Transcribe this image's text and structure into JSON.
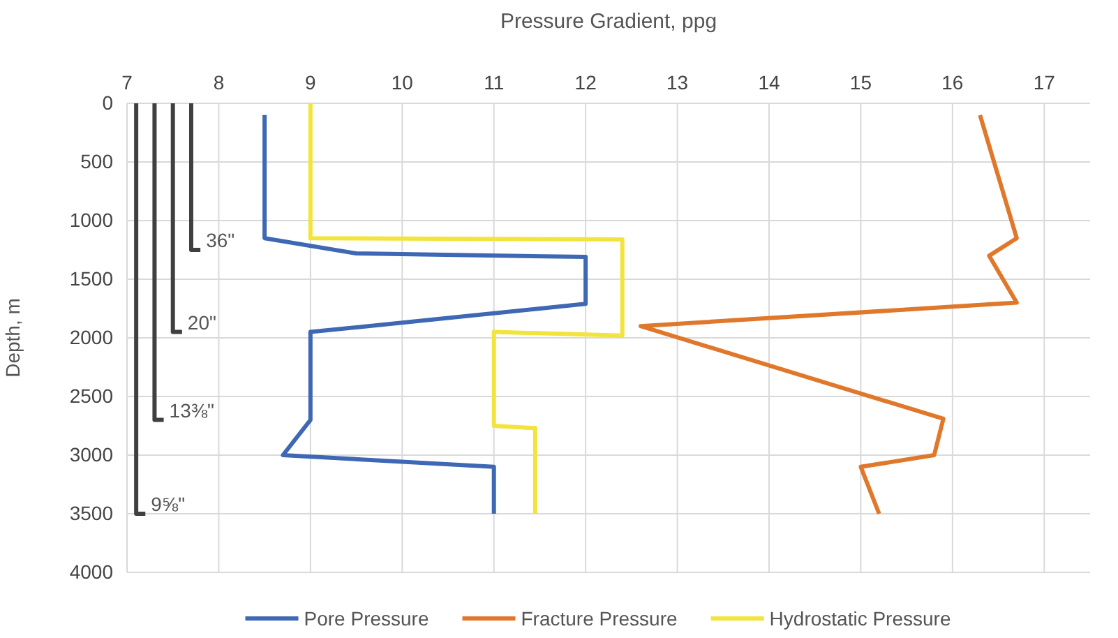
{
  "chart_data": {
    "type": "line",
    "xlabel": "Pressure Gradient, ppg",
    "ylabel": "Depth, m",
    "xlim": [
      7,
      17.5
    ],
    "xticks": [
      7,
      8,
      9,
      10,
      11,
      12,
      13,
      14,
      15,
      16,
      17
    ],
    "ylim": [
      4000,
      0
    ],
    "yticks": [
      0,
      500,
      1000,
      1500,
      2000,
      2500,
      3000,
      3500,
      4000
    ],
    "grid": true,
    "legend": "bottom",
    "line_style": "solid",
    "marker": "none",
    "series": [
      {
        "name": "Pore Pressure",
        "color": "#3e68b4",
        "x": [
          8.5,
          8.5,
          9.5,
          12,
          12,
          9,
          9,
          8.7,
          11,
          11
        ],
        "values": [
          100,
          1150,
          1280,
          1310,
          1710,
          1950,
          2700,
          3000,
          3100,
          3500
        ]
      },
      {
        "name": "Fracture Pressure",
        "color": "#e0782c",
        "x": [
          16.3,
          16.7,
          16.4,
          16.7,
          12.6,
          15.9,
          15.8,
          15,
          15.2
        ],
        "values": [
          100,
          1150,
          1300,
          1700,
          1900,
          2690,
          3000,
          3100,
          3500
        ]
      },
      {
        "name": "Hydrostatic Pressure",
        "color": "#f2e43c",
        "x": [
          9,
          9,
          12.4,
          12.4,
          11,
          11,
          11.45,
          11.45
        ],
        "values": [
          0,
          1150,
          1160,
          1980,
          1950,
          2750,
          2770,
          3500
        ]
      },
      {
        "color": "#404040",
        "x": [
          7.7,
          7.7,
          7.8
        ],
        "values": [
          0,
          1250,
          1250
        ]
      },
      {
        "color": "#404040",
        "x": [
          7.5,
          7.5,
          7.6
        ],
        "values": [
          0,
          1950,
          1950
        ]
      },
      {
        "color": "#404040",
        "x": [
          7.3,
          7.3,
          7.4
        ],
        "values": [
          0,
          2700,
          2700
        ]
      },
      {
        "color": "#404040",
        "x": [
          7.1,
          7.1,
          7.2
        ],
        "values": [
          0,
          3500,
          3500
        ]
      }
    ],
    "annotations": [
      {
        "text": "36\"",
        "x": 7.8,
        "y": 1250
      },
      {
        "text": "20\"",
        "x": 7.6,
        "y": 1950
      },
      {
        "text": "13⅜\"",
        "x": 7.4,
        "y": 2700
      },
      {
        "text": "9⅝\"",
        "x": 7.2,
        "y": 3500
      }
    ]
  }
}
